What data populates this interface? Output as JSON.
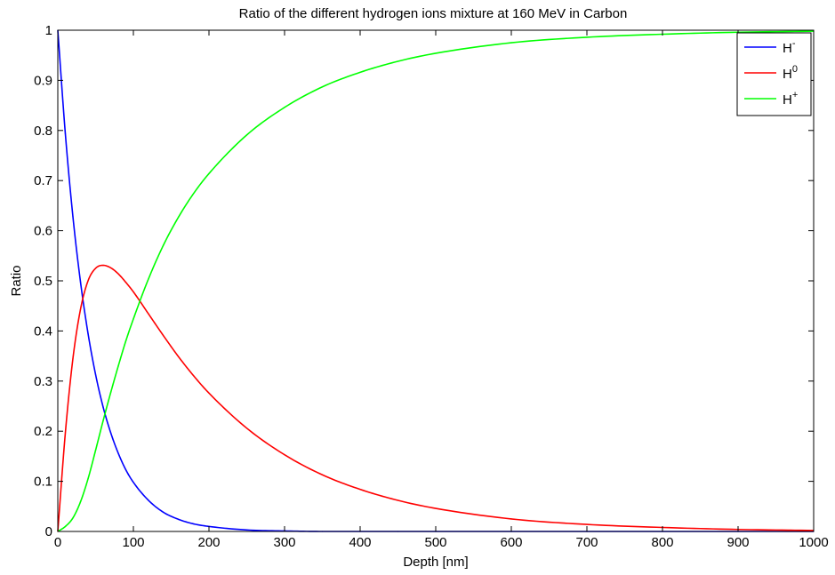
{
  "chart_data": {
    "type": "line",
    "title": "Ratio of the different hydrogen ions mixture at 160 MeV in Carbon",
    "xlabel": "Depth [nm]",
    "ylabel": "Ratio",
    "xlim": [
      0,
      1000
    ],
    "ylim": [
      0,
      1
    ],
    "x_ticks": [
      0,
      100,
      200,
      300,
      400,
      500,
      600,
      700,
      800,
      900,
      1000
    ],
    "y_ticks": [
      0,
      0.1,
      0.2,
      0.3,
      0.4,
      0.5,
      0.6,
      0.7,
      0.8,
      0.9,
      1
    ],
    "grid": false,
    "legend_position": "top-right",
    "x": [
      0,
      10,
      20,
      30,
      40,
      50,
      60,
      70,
      80,
      90,
      100,
      120,
      140,
      160,
      180,
      200,
      250,
      300,
      350,
      400,
      450,
      500,
      600,
      700,
      800,
      900,
      1000
    ],
    "series": [
      {
        "name": "H",
        "superscript": "-",
        "color": "#0000ff",
        "values": [
          1.0,
          0.793,
          0.628,
          0.498,
          0.395,
          0.313,
          0.248,
          0.197,
          0.156,
          0.123,
          0.098,
          0.062,
          0.038,
          0.024,
          0.015,
          0.01,
          0.003,
          0.001,
          0.0,
          0.0,
          0.0,
          0.0,
          0.0,
          0.0,
          0.0,
          0.0,
          0.0
        ]
      },
      {
        "name": "H",
        "superscript": "0",
        "color": "#ff0000",
        "values": [
          0.0,
          0.197,
          0.345,
          0.443,
          0.5,
          0.525,
          0.531,
          0.526,
          0.514,
          0.497,
          0.478,
          0.434,
          0.39,
          0.348,
          0.31,
          0.276,
          0.206,
          0.153,
          0.113,
          0.084,
          0.062,
          0.046,
          0.025,
          0.014,
          0.008,
          0.004,
          0.002
        ]
      },
      {
        "name": "H",
        "superscript": "+",
        "color": "#00ff00",
        "values": [
          0.0,
          0.01,
          0.027,
          0.059,
          0.105,
          0.162,
          0.221,
          0.277,
          0.33,
          0.38,
          0.424,
          0.504,
          0.572,
          0.628,
          0.675,
          0.714,
          0.791,
          0.846,
          0.887,
          0.916,
          0.938,
          0.954,
          0.975,
          0.986,
          0.992,
          0.996,
          0.998
        ]
      }
    ]
  }
}
